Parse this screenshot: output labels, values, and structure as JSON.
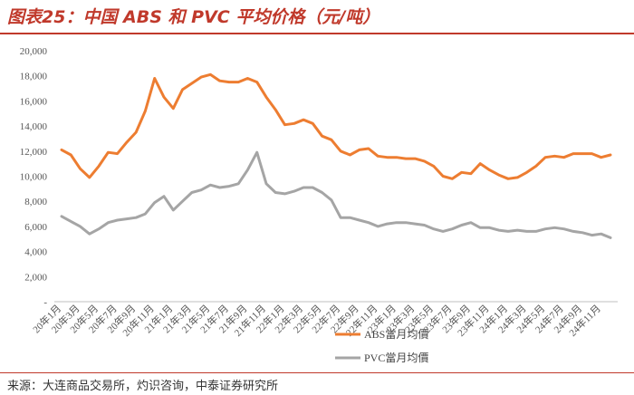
{
  "header": {
    "title": "图表25：中国 ABS 和 PVC 平均价格（元/吨）"
  },
  "footer": {
    "source": "来源：大连商品交易所，灼识咨询，中泰证券研究所"
  },
  "colors": {
    "accent": "#c0392b",
    "abs": "#ed7d31",
    "pvc": "#a5a5a5"
  },
  "chart_data": {
    "type": "line",
    "title": "",
    "xlabel": "",
    "ylabel": "",
    "ylim": [
      0,
      20000
    ],
    "yticks": [
      0,
      2000,
      4000,
      6000,
      8000,
      10000,
      12000,
      14000,
      16000,
      18000,
      20000
    ],
    "ytick_labels": [
      "-",
      "2,000",
      "4,000",
      "6,000",
      "8,000",
      "10,000",
      "12,000",
      "14,000",
      "16,000",
      "18,000",
      "20,000"
    ],
    "grid": false,
    "legend_position": "bottom-right",
    "x": [
      "20年1月",
      "20年2月",
      "20年3月",
      "20年4月",
      "20年5月",
      "20年6月",
      "20年7月",
      "20年8月",
      "20年9月",
      "20年10月",
      "20年11月",
      "20年12月",
      "21年1月",
      "21年2月",
      "21年3月",
      "21年4月",
      "21年5月",
      "21年6月",
      "21年7月",
      "21年8月",
      "21年9月",
      "21年10月",
      "21年11月",
      "21年12月",
      "22年1月",
      "22年2月",
      "22年3月",
      "22年4月",
      "22年5月",
      "22年6月",
      "22年7月",
      "22年8月",
      "22年9月",
      "22年10月",
      "22年11月",
      "22年12月",
      "23年1月",
      "23年2月",
      "23年3月",
      "23年4月",
      "23年5月",
      "23年6月",
      "23年7月",
      "23年8月",
      "23年9月",
      "23年10月",
      "23年11月",
      "23年12月",
      "24年1月",
      "24年2月",
      "24年3月",
      "24年4月",
      "24年5月",
      "24年6月",
      "24年7月",
      "24年8月",
      "24年9月",
      "24年10月",
      "24年11月",
      "24年12月"
    ],
    "x_tick_labels": [
      "20年1月",
      "20年3月",
      "20年5月",
      "20年7月",
      "20年9月",
      "20年11月",
      "21年1月",
      "21年3月",
      "21年5月",
      "21年7月",
      "21年9月",
      "21年11月",
      "22年1月",
      "22年3月",
      "22年5月",
      "22年7月",
      "22年9月",
      "22年11月",
      "23年1月",
      "23年3月",
      "23年5月",
      "23年7月",
      "23年9月",
      "23年11月",
      "24年1月",
      "24年3月",
      "24年5月",
      "24年7月",
      "24年9月",
      "24年11月"
    ],
    "series": [
      {
        "name": "ABS當月均價",
        "color": "#ed7d31",
        "values": [
          12100,
          11700,
          10600,
          9900,
          10800,
          11900,
          11800,
          12700,
          13500,
          15200,
          17800,
          16300,
          15400,
          16900,
          17400,
          17900,
          18100,
          17600,
          17500,
          17500,
          17800,
          17500,
          16300,
          15300,
          14100,
          14200,
          14500,
          14200,
          13200,
          12900,
          12000,
          11700,
          12100,
          12200,
          11600,
          11500,
          11500,
          11400,
          11400,
          11200,
          10800,
          10000,
          9800,
          10300,
          10200,
          11000,
          10500,
          10100,
          9800,
          9900,
          10300,
          10800,
          11500,
          11600,
          11500,
          11800,
          11800,
          11800,
          11500,
          11700
        ]
      },
      {
        "name": "PVC當月均價",
        "color": "#a5a5a5",
        "values": [
          6800,
          6400,
          6000,
          5400,
          5800,
          6300,
          6500,
          6600,
          6700,
          7000,
          7900,
          8400,
          7300,
          8000,
          8700,
          8900,
          9300,
          9100,
          9200,
          9400,
          10500,
          11900,
          9400,
          8700,
          8600,
          8800,
          9100,
          9100,
          8700,
          8100,
          6700,
          6700,
          6500,
          6300,
          6000,
          6200,
          6300,
          6300,
          6200,
          6100,
          5800,
          5600,
          5800,
          6100,
          6300,
          5900,
          5900,
          5700,
          5600,
          5700,
          5600,
          5600,
          5800,
          5900,
          5800,
          5600,
          5500,
          5300,
          5400,
          5100
        ]
      }
    ]
  }
}
